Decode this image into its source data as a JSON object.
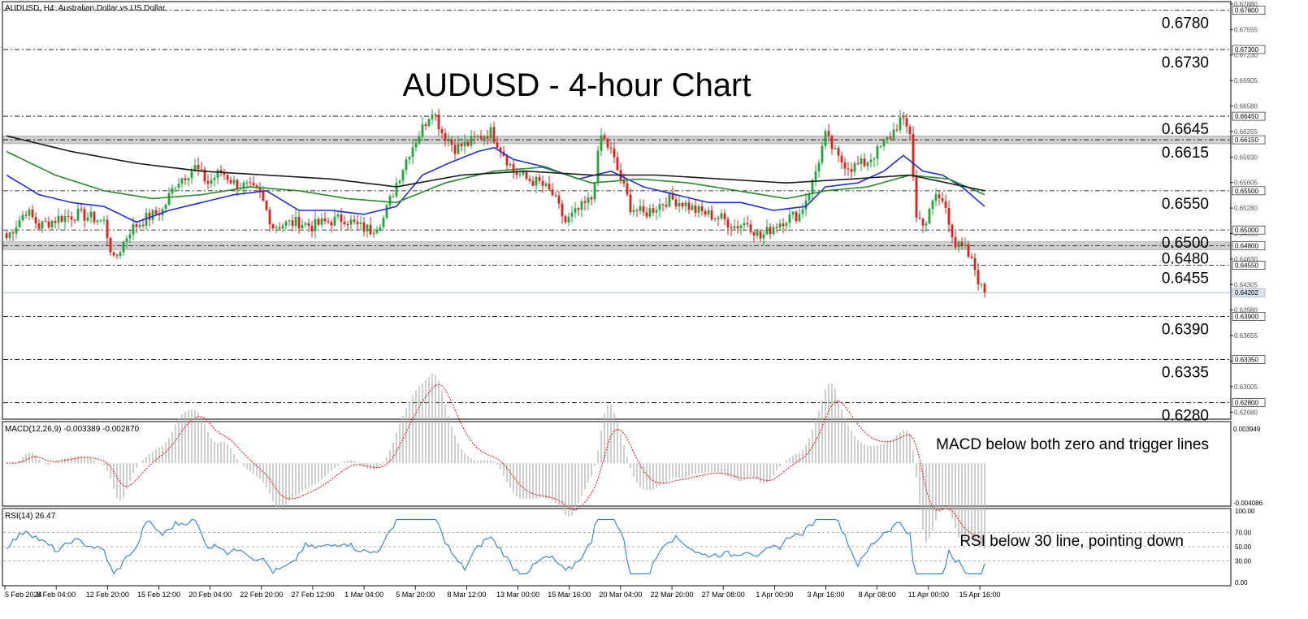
{
  "header": {
    "symbol_info": "AUDUSD, H4:  Australian Dollar vs US Dollar",
    "chart_title": "AUDUSD - 4-hour Chart"
  },
  "colors": {
    "bull_candle": "#21a43a",
    "bear_candle": "#e0221c",
    "sma_20": "#1f2fd6",
    "sma_50": "#2b8a2b",
    "sma_200": "#1a1a1a",
    "zone_fill": "#cfcfcf",
    "macd_hist": "#b4b4b4",
    "macd_signal": "#e02020",
    "rsi_line": "#2f7fd0",
    "grid_dash": "#000000"
  },
  "chart_data": [
    {
      "type": "candlestick",
      "panel": "price",
      "title": "AUDUSD - 4-hour Chart",
      "timeframe": "H4",
      "ylim": [
        0.626,
        0.679
      ],
      "x_tick_labels": [
        "5 Feb 2024",
        "8 Feb 04:00",
        "12 Feb 20:00",
        "15 Feb 12:00",
        "20 Feb 04:00",
        "22 Feb 20:00",
        "27 Feb 12:00",
        "1 Mar 04:00",
        "5 Mar 20:00",
        "8 Mar 12:00",
        "13 Mar 00:00",
        "15 Mar 16:00",
        "20 Mar 04:00",
        "22 Mar 20:00",
        "27 Mar 08:00",
        "1 Apr 00:00",
        "3 Apr 16:00",
        "8 Apr 08:00",
        "11 Apr 00:00",
        "15 Apr 16:00"
      ],
      "right_axis_ticks": [
        "0.67880",
        "0.67555",
        "0.67230",
        "0.66905",
        "0.66580",
        "0.66255",
        "0.65930",
        "0.65605",
        "0.65280",
        "0.64955",
        "0.64630",
        "0.64305",
        "0.63980",
        "0.63655",
        "0.63330",
        "0.63005",
        "0.62680"
      ],
      "right_axis_labels": [
        {
          "text": "0.67800",
          "value": 0.678,
          "highlight": true
        },
        {
          "text": "0.67300",
          "value": 0.673,
          "highlight": true
        },
        {
          "text": "0.66450",
          "value": 0.6645,
          "highlight": true
        },
        {
          "text": "0.66150",
          "value": 0.6615,
          "highlight": true
        },
        {
          "text": "0.65500",
          "value": 0.655,
          "highlight": true
        },
        {
          "text": "0.65000",
          "value": 0.65,
          "highlight": true
        },
        {
          "text": "0.64800",
          "value": 0.648,
          "highlight": true
        },
        {
          "text": "0.64550",
          "value": 0.6455,
          "highlight": true
        },
        {
          "text": "0.64202",
          "value": 0.64202,
          "highlight": false,
          "current": true
        },
        {
          "text": "0.63900",
          "value": 0.639,
          "highlight": true
        },
        {
          "text": "0.63350",
          "value": 0.6335,
          "highlight": true
        },
        {
          "text": "0.62800",
          "value": 0.628,
          "highlight": true
        }
      ],
      "levels": [
        {
          "label": "0.6780",
          "value": 0.678
        },
        {
          "label": "0.6730",
          "value": 0.673
        },
        {
          "label": "0.6645",
          "value": 0.6645
        },
        {
          "label": "0.6615",
          "value": 0.6615
        },
        {
          "label": "0.6550",
          "value": 0.655
        },
        {
          "label": "0.6500",
          "value": 0.65
        },
        {
          "label": "0.6480",
          "value": 0.648
        },
        {
          "label": "0.6455",
          "value": 0.6455
        },
        {
          "label": "0.6390",
          "value": 0.639
        },
        {
          "label": "0.6335",
          "value": 0.6335
        },
        {
          "label": "0.6280",
          "value": 0.628
        }
      ],
      "zones": [
        {
          "from": 0.661,
          "to": 0.662
        },
        {
          "from": 0.6475,
          "to": 0.6485
        }
      ],
      "current_price": 0.64202,
      "close_anchors": [
        [
          0,
          0.649
        ],
        [
          6,
          0.6525
        ],
        [
          10,
          0.6505
        ],
        [
          16,
          0.6515
        ],
        [
          22,
          0.652
        ],
        [
          27,
          0.6515
        ],
        [
          30,
          0.651
        ],
        [
          33,
          0.646
        ],
        [
          38,
          0.65
        ],
        [
          43,
          0.6515
        ],
        [
          48,
          0.6525
        ],
        [
          52,
          0.656
        ],
        [
          58,
          0.658
        ],
        [
          62,
          0.656
        ],
        [
          66,
          0.6575
        ],
        [
          70,
          0.656
        ],
        [
          74,
          0.6555
        ],
        [
          78,
          0.6545
        ],
        [
          82,
          0.6505
        ],
        [
          86,
          0.6508
        ],
        [
          90,
          0.651
        ],
        [
          94,
          0.6505
        ],
        [
          98,
          0.651
        ],
        [
          104,
          0.6515
        ],
        [
          108,
          0.6505
        ],
        [
          112,
          0.65
        ],
        [
          116,
          0.6515
        ],
        [
          120,
          0.656
        ],
        [
          124,
          0.66
        ],
        [
          128,
          0.663
        ],
        [
          131,
          0.6655
        ],
        [
          134,
          0.6625
        ],
        [
          138,
          0.6605
        ],
        [
          142,
          0.661
        ],
        [
          146,
          0.662
        ],
        [
          149,
          0.6625
        ],
        [
          152,
          0.6605
        ],
        [
          156,
          0.6575
        ],
        [
          160,
          0.6565
        ],
        [
          164,
          0.656
        ],
        [
          168,
          0.6545
        ],
        [
          172,
          0.651
        ],
        [
          176,
          0.6525
        ],
        [
          180,
          0.654
        ],
        [
          183,
          0.662
        ],
        [
          186,
          0.66
        ],
        [
          189,
          0.6565
        ],
        [
          192,
          0.653
        ],
        [
          196,
          0.652
        ],
        [
          200,
          0.653
        ],
        [
          204,
          0.654
        ],
        [
          208,
          0.6535
        ],
        [
          212,
          0.6525
        ],
        [
          216,
          0.652
        ],
        [
          220,
          0.6515
        ],
        [
          224,
          0.6505
        ],
        [
          228,
          0.651
        ],
        [
          232,
          0.649
        ],
        [
          236,
          0.6505
        ],
        [
          240,
          0.6515
        ],
        [
          244,
          0.652
        ],
        [
          248,
          0.656
        ],
        [
          252,
          0.662
        ],
        [
          256,
          0.659
        ],
        [
          260,
          0.658
        ],
        [
          264,
          0.6585
        ],
        [
          268,
          0.66
        ],
        [
          272,
          0.662
        ],
        [
          275,
          0.664
        ],
        [
          278,
          0.6625
        ],
        [
          280,
          0.6515
        ],
        [
          283,
          0.651
        ],
        [
          286,
          0.6545
        ],
        [
          289,
          0.653
        ],
        [
          292,
          0.648
        ],
        [
          295,
          0.6475
        ],
        [
          298,
          0.645
        ],
        [
          300,
          0.6425
        ],
        [
          301,
          0.642
        ]
      ],
      "overlays": [
        {
          "name": "SMA 20",
          "color_key": "sma_20",
          "anchors": [
            [
              0,
              0.657
            ],
            [
              10,
              0.6545
            ],
            [
              20,
              0.6535
            ],
            [
              30,
              0.653
            ],
            [
              40,
              0.651
            ],
            [
              50,
              0.6525
            ],
            [
              60,
              0.6535
            ],
            [
              70,
              0.6545
            ],
            [
              80,
              0.655
            ],
            [
              90,
              0.6525
            ],
            [
              100,
              0.6525
            ],
            [
              110,
              0.652
            ],
            [
              120,
              0.653
            ],
            [
              128,
              0.657
            ],
            [
              136,
              0.6585
            ],
            [
              145,
              0.66
            ],
            [
              150,
              0.6605
            ],
            [
              156,
              0.659
            ],
            [
              166,
              0.658
            ],
            [
              176,
              0.6565
            ],
            [
              186,
              0.6575
            ],
            [
              196,
              0.6555
            ],
            [
              206,
              0.6545
            ],
            [
              216,
              0.6535
            ],
            [
              226,
              0.6535
            ],
            [
              236,
              0.6525
            ],
            [
              246,
              0.653
            ],
            [
              252,
              0.6555
            ],
            [
              262,
              0.656
            ],
            [
              270,
              0.6575
            ],
            [
              276,
              0.6595
            ],
            [
              282,
              0.6575
            ],
            [
              288,
              0.657
            ],
            [
              294,
              0.6555
            ],
            [
              301,
              0.653
            ]
          ]
        },
        {
          "name": "SMA 50",
          "color_key": "sma_50",
          "anchors": [
            [
              0,
              0.66
            ],
            [
              15,
              0.657
            ],
            [
              30,
              0.655
            ],
            [
              45,
              0.654
            ],
            [
              60,
              0.6545
            ],
            [
              75,
              0.6555
            ],
            [
              90,
              0.655
            ],
            [
              105,
              0.654
            ],
            [
              120,
              0.6535
            ],
            [
              135,
              0.656
            ],
            [
              150,
              0.6575
            ],
            [
              165,
              0.658
            ],
            [
              180,
              0.656
            ],
            [
              195,
              0.6565
            ],
            [
              210,
              0.656
            ],
            [
              225,
              0.655
            ],
            [
              240,
              0.654
            ],
            [
              252,
              0.655
            ],
            [
              265,
              0.6555
            ],
            [
              278,
              0.657
            ],
            [
              290,
              0.6565
            ],
            [
              301,
              0.6545
            ]
          ]
        },
        {
          "name": "SMA 200",
          "color_key": "sma_200",
          "anchors": [
            [
              0,
              0.662
            ],
            [
              20,
              0.66
            ],
            [
              40,
              0.6585
            ],
            [
              60,
              0.6575
            ],
            [
              80,
              0.657
            ],
            [
              100,
              0.6565
            ],
            [
              120,
              0.6555
            ],
            [
              140,
              0.657
            ],
            [
              160,
              0.6575
            ],
            [
              180,
              0.657
            ],
            [
              200,
              0.657
            ],
            [
              220,
              0.6565
            ],
            [
              240,
              0.656
            ],
            [
              260,
              0.6565
            ],
            [
              278,
              0.657
            ],
            [
              301,
              0.655
            ]
          ]
        }
      ]
    },
    {
      "type": "histogram+line",
      "panel": "macd",
      "indicator_label": "MACD(12,26,9) -0.003389 -0.002870",
      "right_axis_labels": [
        "0.003949",
        "-0.004086"
      ],
      "ylim": [
        -0.004086,
        0.003949
      ],
      "annotation": "MACD below both zero and trigger lines"
    },
    {
      "type": "line",
      "panel": "rsi",
      "indicator_label": "RSI(14) 26.47",
      "ylim": [
        0,
        100
      ],
      "level_lines": [
        70,
        50,
        30
      ],
      "right_axis_labels": [
        "100.00",
        "70.00",
        "50.00",
        "30.00",
        "0.00"
      ],
      "annotation": "RSI below 30 line, pointing down",
      "last_value": 26.47
    }
  ]
}
